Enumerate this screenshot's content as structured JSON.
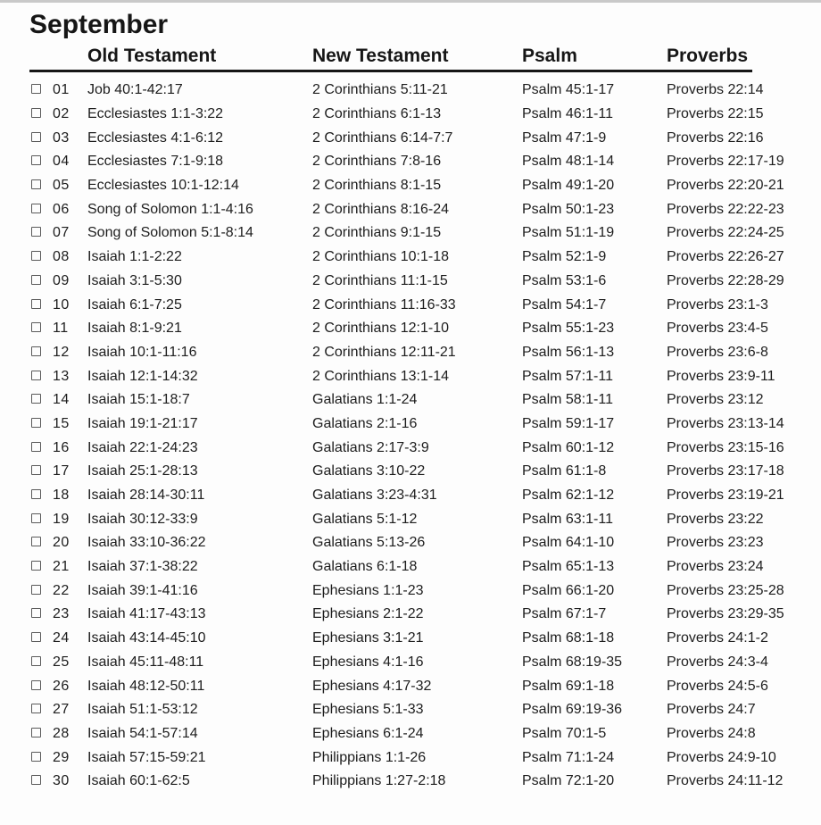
{
  "title": "September",
  "columns": {
    "old_testament": "Old Testament",
    "new_testament": "New Testament",
    "psalm": "Psalm",
    "proverbs": "Proverbs"
  },
  "colors": {
    "text": "#1d1d1d",
    "header_rule": "#161616",
    "checkbox_border": "#5a5a5a",
    "background": "#fdfdfd"
  },
  "rows": [
    {
      "day": "01",
      "ot": "Job 40:1-42:17",
      "nt": "2 Corinthians 5:11-21",
      "psalm": "Psalm 45:1-17",
      "proverbs": "Proverbs 22:14"
    },
    {
      "day": "02",
      "ot": "Ecclesiastes 1:1-3:22",
      "nt": "2 Corinthians 6:1-13",
      "psalm": "Psalm 46:1-11",
      "proverbs": "Proverbs 22:15"
    },
    {
      "day": "03",
      "ot": "Ecclesiastes 4:1-6:12",
      "nt": "2 Corinthians 6:14-7:7",
      "psalm": "Psalm 47:1-9",
      "proverbs": "Proverbs 22:16"
    },
    {
      "day": "04",
      "ot": "Ecclesiastes 7:1-9:18",
      "nt": "2 Corinthians 7:8-16",
      "psalm": "Psalm 48:1-14",
      "proverbs": "Proverbs 22:17-19"
    },
    {
      "day": "05",
      "ot": "Ecclesiastes 10:1-12:14",
      "nt": "2 Corinthians 8:1-15",
      "psalm": "Psalm 49:1-20",
      "proverbs": "Proverbs 22:20-21"
    },
    {
      "day": "06",
      "ot": "Song of Solomon 1:1-4:16",
      "nt": "2 Corinthians 8:16-24",
      "psalm": "Psalm 50:1-23",
      "proverbs": "Proverbs 22:22-23"
    },
    {
      "day": "07",
      "ot": "Song of Solomon 5:1-8:14",
      "nt": "2 Corinthians 9:1-15",
      "psalm": "Psalm 51:1-19",
      "proverbs": "Proverbs 22:24-25"
    },
    {
      "day": "08",
      "ot": "Isaiah 1:1-2:22",
      "nt": "2 Corinthians 10:1-18",
      "psalm": "Psalm 52:1-9",
      "proverbs": "Proverbs 22:26-27"
    },
    {
      "day": "09",
      "ot": "Isaiah 3:1-5:30",
      "nt": "2 Corinthians 11:1-15",
      "psalm": "Psalm 53:1-6",
      "proverbs": "Proverbs 22:28-29"
    },
    {
      "day": "10",
      "ot": "Isaiah 6:1-7:25",
      "nt": "2 Corinthians 11:16-33",
      "psalm": "Psalm 54:1-7",
      "proverbs": "Proverbs 23:1-3"
    },
    {
      "day": "11",
      "ot": "Isaiah 8:1-9:21",
      "nt": "2 Corinthians 12:1-10",
      "psalm": "Psalm 55:1-23",
      "proverbs": "Proverbs 23:4-5"
    },
    {
      "day": "12",
      "ot": "Isaiah 10:1-11:16",
      "nt": "2 Corinthians 12:11-21",
      "psalm": "Psalm 56:1-13",
      "proverbs": "Proverbs 23:6-8"
    },
    {
      "day": "13",
      "ot": "Isaiah 12:1-14:32",
      "nt": "2 Corinthians 13:1-14",
      "psalm": "Psalm 57:1-11",
      "proverbs": "Proverbs 23:9-11"
    },
    {
      "day": "14",
      "ot": "Isaiah 15:1-18:7",
      "nt": "Galatians 1:1-24",
      "psalm": "Psalm 58:1-11",
      "proverbs": "Proverbs 23:12"
    },
    {
      "day": "15",
      "ot": "Isaiah 19:1-21:17",
      "nt": "Galatians 2:1-16",
      "psalm": "Psalm 59:1-17",
      "proverbs": "Proverbs 23:13-14"
    },
    {
      "day": "16",
      "ot": "Isaiah 22:1-24:23",
      "nt": "Galatians 2:17-3:9",
      "psalm": "Psalm 60:1-12",
      "proverbs": "Proverbs 23:15-16"
    },
    {
      "day": "17",
      "ot": "Isaiah 25:1-28:13",
      "nt": "Galatians 3:10-22",
      "psalm": "Psalm 61:1-8",
      "proverbs": "Proverbs 23:17-18"
    },
    {
      "day": "18",
      "ot": "Isaiah 28:14-30:11",
      "nt": "Galatians 3:23-4:31",
      "psalm": "Psalm 62:1-12",
      "proverbs": "Proverbs 23:19-21"
    },
    {
      "day": "19",
      "ot": "Isaiah 30:12-33:9",
      "nt": "Galatians 5:1-12",
      "psalm": "Psalm 63:1-11",
      "proverbs": "Proverbs 23:22"
    },
    {
      "day": "20",
      "ot": "Isaiah 33:10-36:22",
      "nt": "Galatians 5:13-26",
      "psalm": "Psalm 64:1-10",
      "proverbs": "Proverbs 23:23"
    },
    {
      "day": "21",
      "ot": "Isaiah 37:1-38:22",
      "nt": "Galatians 6:1-18",
      "psalm": "Psalm 65:1-13",
      "proverbs": "Proverbs 23:24"
    },
    {
      "day": "22",
      "ot": "Isaiah 39:1-41:16",
      "nt": "Ephesians 1:1-23",
      "psalm": "Psalm 66:1-20",
      "proverbs": "Proverbs 23:25-28"
    },
    {
      "day": "23",
      "ot": "Isaiah 41:17-43:13",
      "nt": "Ephesians 2:1-22",
      "psalm": "Psalm 67:1-7",
      "proverbs": "Proverbs 23:29-35"
    },
    {
      "day": "24",
      "ot": "Isaiah 43:14-45:10",
      "nt": "Ephesians 3:1-21",
      "psalm": "Psalm 68:1-18",
      "proverbs": "Proverbs 24:1-2"
    },
    {
      "day": "25",
      "ot": "Isaiah 45:11-48:11",
      "nt": "Ephesians 4:1-16",
      "psalm": "Psalm 68:19-35",
      "proverbs": "Proverbs 24:3-4"
    },
    {
      "day": "26",
      "ot": "Isaiah 48:12-50:11",
      "nt": "Ephesians 4:17-32",
      "psalm": "Psalm 69:1-18",
      "proverbs": "Proverbs 24:5-6"
    },
    {
      "day": "27",
      "ot": "Isaiah 51:1-53:12",
      "nt": "Ephesians 5:1-33",
      "psalm": "Psalm 69:19-36",
      "proverbs": "Proverbs 24:7"
    },
    {
      "day": "28",
      "ot": "Isaiah 54:1-57:14",
      "nt": "Ephesians 6:1-24",
      "psalm": "Psalm 70:1-5",
      "proverbs": "Proverbs 24:8"
    },
    {
      "day": "29",
      "ot": "Isaiah 57:15-59:21",
      "nt": "Philippians 1:1-26",
      "psalm": "Psalm 71:1-24",
      "proverbs": "Proverbs 24:9-10"
    },
    {
      "day": "30",
      "ot": "Isaiah 60:1-62:5",
      "nt": "Philippians 1:27-2:18",
      "psalm": "Psalm 72:1-20",
      "proverbs": "Proverbs 24:11-12"
    }
  ]
}
